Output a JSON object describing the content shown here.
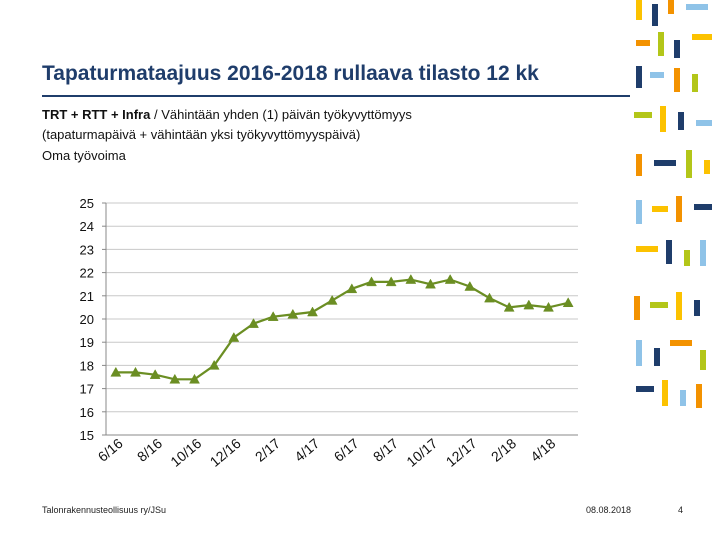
{
  "slide": {
    "title": "Tapaturmataajuus 2016-2018 rullaava tilasto 12 kk",
    "subtitle_bold": "TRT + RTT + Infra",
    "subtitle_rest": "/ Vähintään yhden (1) päivän työkyvyttömyys",
    "subtitle_line2": "(tapaturmapäivä + vähintään yksi työkyvyttömyyspäivä)",
    "subtitle_line3": "Oma työvoima",
    "footer_org": "Talonrakennusteollisuus ry/JSu",
    "footer_date": "08.08.2018",
    "page_number": "4"
  },
  "colors": {
    "title": "#1f3d6b",
    "series": "#6b8e23",
    "grid": "#c8c8c8",
    "deco_blue": "#1f3d6b",
    "deco_orange": "#f39200",
    "deco_yellow": "#fcc200",
    "deco_green": "#b3c619",
    "deco_lightblue": "#8fc3e8"
  },
  "chart_data": {
    "type": "line",
    "ylim": [
      15,
      25
    ],
    "y_ticks": [
      "25",
      "24",
      "23",
      "22",
      "21",
      "20",
      "19",
      "18",
      "17",
      "16",
      "15"
    ],
    "grid": true,
    "legend": "none",
    "marker": "triangle",
    "x_tick_labels": [
      "6/16",
      "8/16",
      "10/16",
      "12/16",
      "2/17",
      "4/17",
      "6/17",
      "8/17",
      "10/17",
      "12/17",
      "2/18",
      "4/18"
    ],
    "series": [
      {
        "values": [
          17.7,
          17.7,
          17.6,
          17.4,
          17.4,
          18.0,
          19.2,
          19.8,
          20.1,
          20.2,
          20.3,
          20.8,
          21.3,
          21.6,
          21.6,
          21.7,
          21.5,
          21.7,
          21.4,
          20.9,
          20.5,
          20.6,
          20.5,
          20.7
        ]
      }
    ]
  }
}
